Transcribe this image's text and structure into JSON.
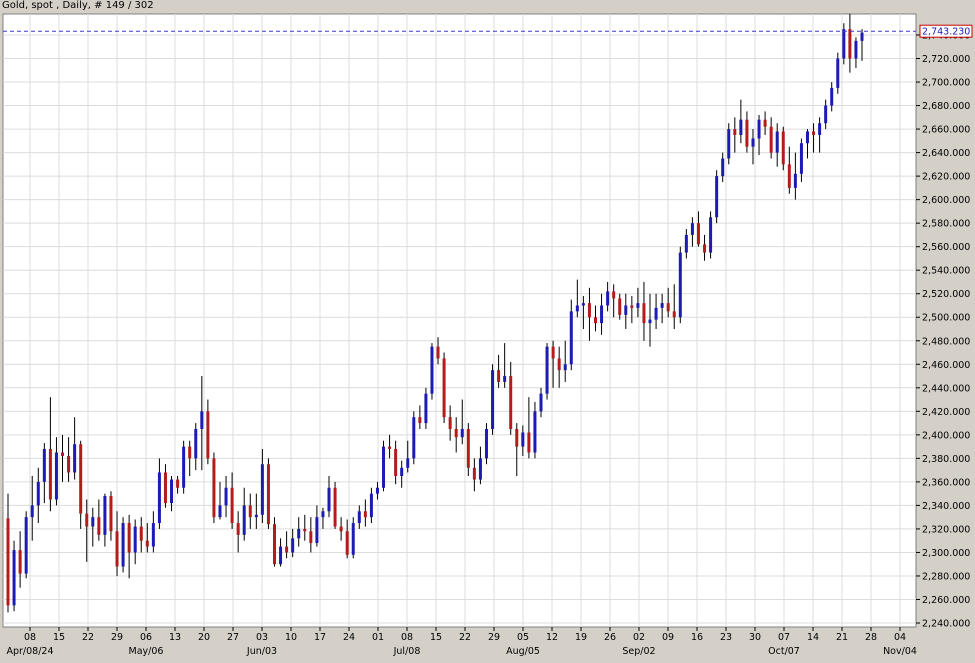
{
  "title": "Gold, spot , Daily, # 149 / 302",
  "chart_data": {
    "type": "candlestick",
    "title": "Gold, spot , Daily, # 149 / 302",
    "ylim": [
      2240,
      2770
    ],
    "y_ticks": [
      2240,
      2260,
      2280,
      2300,
      2320,
      2340,
      2360,
      2380,
      2400,
      2420,
      2440,
      2460,
      2480,
      2500,
      2520,
      2540,
      2560,
      2580,
      2600,
      2620,
      2640,
      2660,
      2680,
      2700,
      2720,
      2740
    ],
    "y_tick_labels": [
      "2,240.000",
      "2,260.000",
      "2,280.000",
      "2,300.000",
      "2,320.000",
      "2,340.000",
      "2,360.000",
      "2,380.000",
      "2,400.000",
      "2,420.000",
      "2,440.000",
      "2,460.000",
      "2,480.000",
      "2,500.000",
      "2,520.000",
      "2,540.000",
      "2,560.000",
      "2,580.000",
      "2,600.000",
      "2,620.000",
      "2,640.000",
      "2,660.000",
      "2,680.000",
      "2,700.000",
      "2,720.000",
      "2,740.000"
    ],
    "x_ticks": [
      "08",
      "15",
      "22",
      "29",
      "06",
      "13",
      "20",
      "27",
      "03",
      "10",
      "17",
      "24",
      "01",
      "08",
      "15",
      "22",
      "29",
      "05",
      "12",
      "19",
      "26",
      "02",
      "09",
      "16",
      "23",
      "30",
      "07",
      "14",
      "21",
      "28",
      "04"
    ],
    "x_month_labels": [
      {
        "label": "Apr/08/24",
        "tick_index": 0
      },
      {
        "label": "May/06",
        "tick_index": 4
      },
      {
        "label": "Jun/03",
        "tick_index": 8
      },
      {
        "label": "Jul/08",
        "tick_index": 13
      },
      {
        "label": "Aug/05",
        "tick_index": 17
      },
      {
        "label": "Sep/02",
        "tick_index": 21
      },
      {
        "label": "Oct/07",
        "tick_index": 26
      },
      {
        "label": "Nov/04",
        "tick_index": 30
      }
    ],
    "last_price": 2743.23,
    "last_price_label": "2,743.230",
    "grid": true,
    "colors": {
      "up": "#1c1cb4",
      "down": "#b41c1c",
      "wick": "#000000",
      "price_line": "#3b3bd6",
      "price_label_border": "#cc0000"
    },
    "candles": [
      [
        2329,
        2350,
        2249,
        2255
      ],
      [
        2255,
        2310,
        2250,
        2302
      ],
      [
        2302,
        2318,
        2270,
        2282
      ],
      [
        2282,
        2335,
        2278,
        2330
      ],
      [
        2330,
        2365,
        2310,
        2340
      ],
      [
        2340,
        2372,
        2325,
        2360
      ],
      [
        2360,
        2393,
        2342,
        2388
      ],
      [
        2388,
        2432,
        2335,
        2345
      ],
      [
        2345,
        2398,
        2340,
        2385
      ],
      [
        2385,
        2400,
        2360,
        2382
      ],
      [
        2382,
        2398,
        2360,
        2368
      ],
      [
        2368,
        2415,
        2362,
        2392
      ],
      [
        2392,
        2395,
        2320,
        2333
      ],
      [
        2333,
        2345,
        2292,
        2322
      ],
      [
        2322,
        2338,
        2305,
        2330
      ],
      [
        2330,
        2345,
        2310,
        2315
      ],
      [
        2315,
        2350,
        2305,
        2348
      ],
      [
        2348,
        2352,
        2310,
        2318
      ],
      [
        2318,
        2335,
        2280,
        2288
      ],
      [
        2288,
        2330,
        2283,
        2325
      ],
      [
        2325,
        2332,
        2278,
        2300
      ],
      [
        2300,
        2328,
        2290,
        2322
      ],
      [
        2322,
        2330,
        2300,
        2310
      ],
      [
        2310,
        2325,
        2300,
        2305
      ],
      [
        2305,
        2335,
        2300,
        2325
      ],
      [
        2325,
        2380,
        2320,
        2368
      ],
      [
        2368,
        2375,
        2338,
        2342
      ],
      [
        2342,
        2365,
        2335,
        2362
      ],
      [
        2362,
        2365,
        2350,
        2355
      ],
      [
        2355,
        2395,
        2350,
        2390
      ],
      [
        2390,
        2395,
        2365,
        2380
      ],
      [
        2380,
        2410,
        2370,
        2405
      ],
      [
        2405,
        2450,
        2370,
        2420
      ],
      [
        2420,
        2430,
        2375,
        2380
      ],
      [
        2380,
        2385,
        2325,
        2330
      ],
      [
        2330,
        2360,
        2328,
        2340
      ],
      [
        2340,
        2365,
        2330,
        2355
      ],
      [
        2355,
        2368,
        2320,
        2325
      ],
      [
        2325,
        2335,
        2300,
        2315
      ],
      [
        2315,
        2355,
        2310,
        2340
      ],
      [
        2340,
        2350,
        2320,
        2330
      ],
      [
        2330,
        2350,
        2320,
        2332
      ],
      [
        2332,
        2388,
        2325,
        2375
      ],
      [
        2375,
        2380,
        2320,
        2324
      ],
      [
        2324,
        2330,
        2288,
        2290
      ],
      [
        2290,
        2312,
        2288,
        2305
      ],
      [
        2305,
        2318,
        2295,
        2300
      ],
      [
        2300,
        2320,
        2296,
        2312
      ],
      [
        2312,
        2330,
        2305,
        2320
      ],
      [
        2320,
        2332,
        2310,
        2318
      ],
      [
        2318,
        2330,
        2300,
        2308
      ],
      [
        2308,
        2340,
        2305,
        2330
      ],
      [
        2330,
        2338,
        2320,
        2335
      ],
      [
        2335,
        2365,
        2330,
        2355
      ],
      [
        2355,
        2360,
        2320,
        2322
      ],
      [
        2322,
        2330,
        2310,
        2318
      ],
      [
        2318,
        2328,
        2295,
        2298
      ],
      [
        2298,
        2330,
        2295,
        2325
      ],
      [
        2325,
        2340,
        2320,
        2335
      ],
      [
        2335,
        2345,
        2322,
        2330
      ],
      [
        2330,
        2355,
        2325,
        2350
      ],
      [
        2350,
        2360,
        2345,
        2355
      ],
      [
        2355,
        2395,
        2352,
        2390
      ],
      [
        2390,
        2400,
        2380,
        2388
      ],
      [
        2388,
        2395,
        2358,
        2365
      ],
      [
        2365,
        2378,
        2355,
        2372
      ],
      [
        2372,
        2395,
        2368,
        2380
      ],
      [
        2380,
        2420,
        2375,
        2415
      ],
      [
        2415,
        2425,
        2405,
        2410
      ],
      [
        2410,
        2440,
        2405,
        2435
      ],
      [
        2435,
        2478,
        2430,
        2475
      ],
      [
        2475,
        2483,
        2460,
        2465
      ],
      [
        2465,
        2470,
        2410,
        2415
      ],
      [
        2415,
        2425,
        2395,
        2405
      ],
      [
        2405,
        2415,
        2385,
        2398
      ],
      [
        2398,
        2430,
        2392,
        2405
      ],
      [
        2405,
        2410,
        2365,
        2372
      ],
      [
        2372,
        2380,
        2352,
        2362
      ],
      [
        2362,
        2390,
        2358,
        2380
      ],
      [
        2380,
        2410,
        2375,
        2405
      ],
      [
        2405,
        2460,
        2400,
        2455
      ],
      [
        2455,
        2468,
        2440,
        2445
      ],
      [
        2445,
        2478,
        2440,
        2450
      ],
      [
        2450,
        2462,
        2400,
        2405
      ],
      [
        2405,
        2410,
        2365,
        2390
      ],
      [
        2390,
        2408,
        2382,
        2402
      ],
      [
        2402,
        2432,
        2380,
        2385
      ],
      [
        2385,
        2428,
        2380,
        2420
      ],
      [
        2420,
        2440,
        2415,
        2435
      ],
      [
        2435,
        2478,
        2430,
        2475
      ],
      [
        2475,
        2480,
        2440,
        2465
      ],
      [
        2465,
        2475,
        2440,
        2455
      ],
      [
        2455,
        2480,
        2445,
        2460
      ],
      [
        2460,
        2515,
        2455,
        2505
      ],
      [
        2505,
        2532,
        2500,
        2510
      ],
      [
        2510,
        2518,
        2490,
        2512
      ],
      [
        2512,
        2525,
        2480,
        2500
      ],
      [
        2500,
        2510,
        2488,
        2495
      ],
      [
        2495,
        2520,
        2485,
        2510
      ],
      [
        2510,
        2530,
        2505,
        2522
      ],
      [
        2522,
        2528,
        2500,
        2516
      ],
      [
        2516,
        2520,
        2498,
        2502
      ],
      [
        2502,
        2520,
        2490,
        2510
      ],
      [
        2510,
        2518,
        2495,
        2508
      ],
      [
        2508,
        2525,
        2500,
        2512
      ],
      [
        2512,
        2530,
        2480,
        2495
      ],
      [
        2495,
        2520,
        2475,
        2498
      ],
      [
        2498,
        2520,
        2490,
        2508
      ],
      [
        2508,
        2520,
        2495,
        2512
      ],
      [
        2512,
        2525,
        2500,
        2505
      ],
      [
        2505,
        2528,
        2490,
        2500
      ],
      [
        2500,
        2560,
        2495,
        2555
      ],
      [
        2555,
        2575,
        2550,
        2570
      ],
      [
        2570,
        2585,
        2560,
        2580
      ],
      [
        2580,
        2590,
        2560,
        2562
      ],
      [
        2562,
        2570,
        2548,
        2555
      ],
      [
        2555,
        2590,
        2550,
        2585
      ],
      [
        2585,
        2625,
        2580,
        2620
      ],
      [
        2620,
        2640,
        2615,
        2635
      ],
      [
        2635,
        2665,
        2630,
        2660
      ],
      [
        2660,
        2670,
        2640,
        2655
      ],
      [
        2655,
        2685,
        2648,
        2668
      ],
      [
        2668,
        2675,
        2640,
        2645
      ],
      [
        2645,
        2660,
        2630,
        2652
      ],
      [
        2652,
        2672,
        2638,
        2668
      ],
      [
        2668,
        2675,
        2655,
        2662
      ],
      [
        2662,
        2670,
        2635,
        2640
      ],
      [
        2640,
        2665,
        2628,
        2658
      ],
      [
        2658,
        2662,
        2625,
        2630
      ],
      [
        2630,
        2645,
        2605,
        2610
      ],
      [
        2610,
        2640,
        2600,
        2622
      ],
      [
        2622,
        2652,
        2615,
        2648
      ],
      [
        2648,
        2660,
        2635,
        2658
      ],
      [
        2658,
        2665,
        2640,
        2655
      ],
      [
        2655,
        2670,
        2640,
        2665
      ],
      [
        2665,
        2685,
        2660,
        2680
      ],
      [
        2680,
        2700,
        2675,
        2695
      ],
      [
        2695,
        2725,
        2690,
        2720
      ],
      [
        2720,
        2750,
        2715,
        2745
      ],
      [
        2745,
        2758,
        2708,
        2720
      ],
      [
        2720,
        2738,
        2712,
        2735
      ],
      [
        2735,
        2745,
        2718,
        2742
      ]
    ]
  }
}
